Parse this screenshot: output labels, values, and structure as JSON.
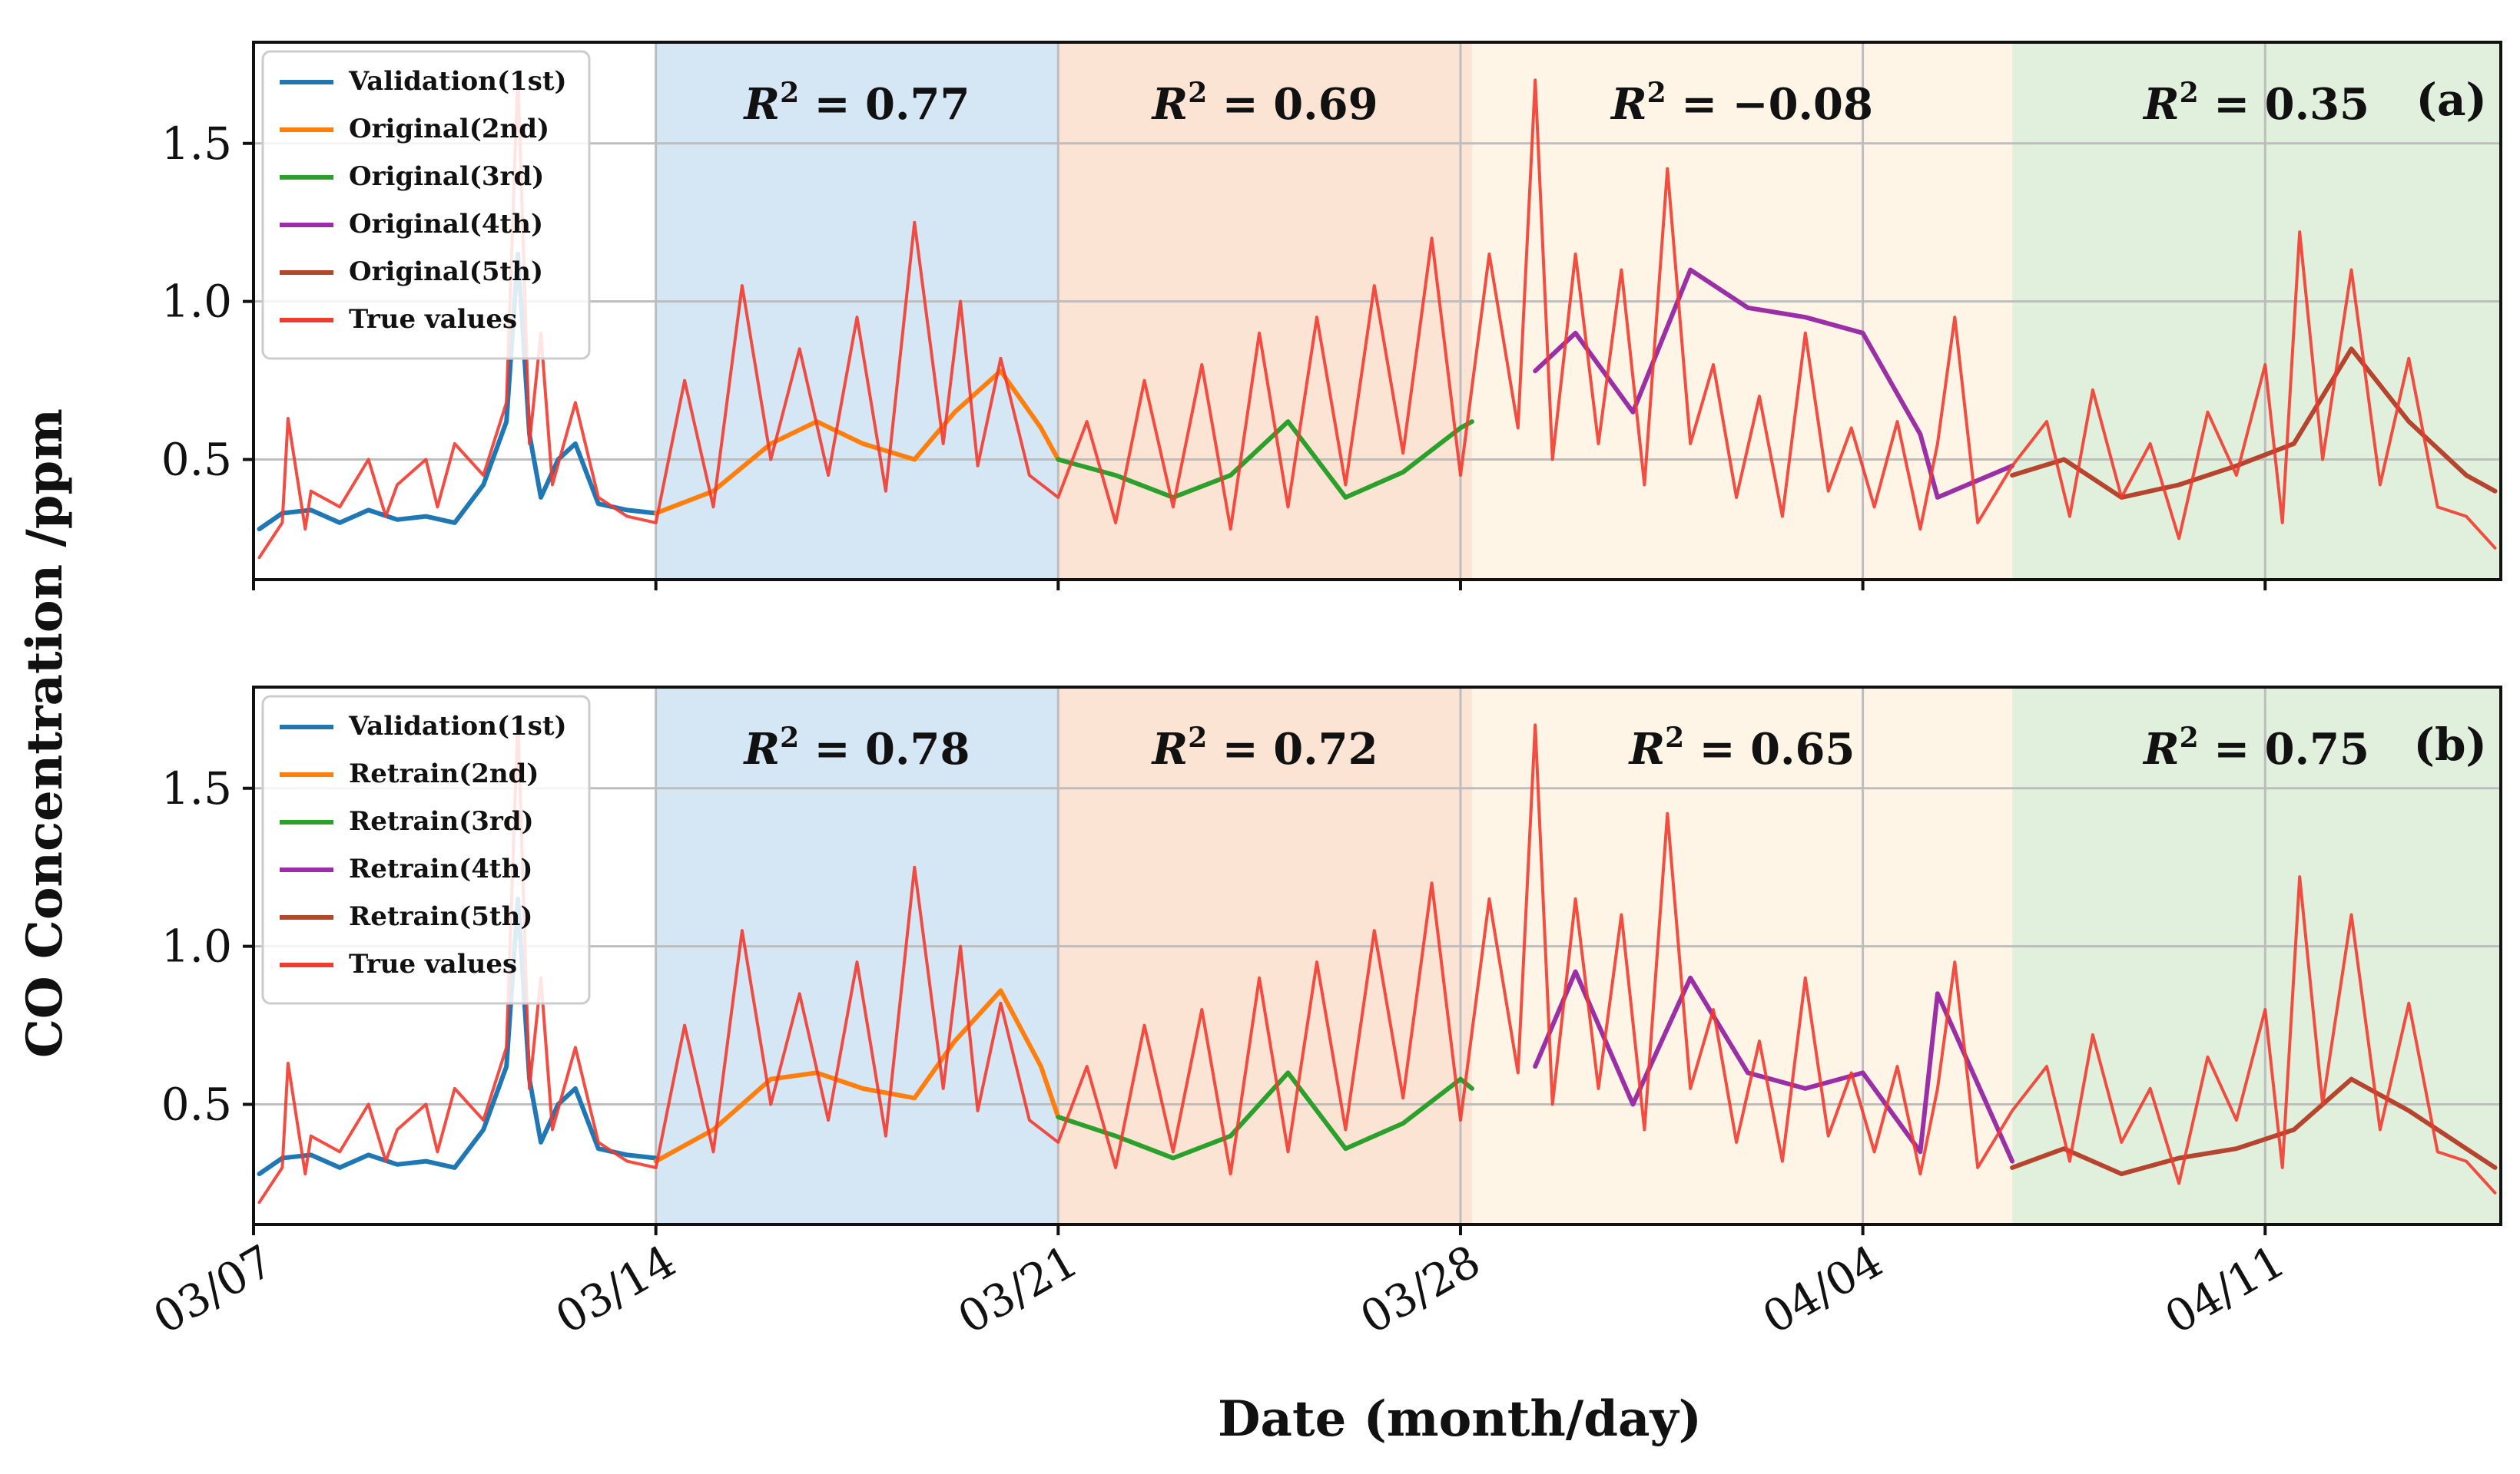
{
  "chart_data": [
    {
      "panel": "(a)",
      "type": "line",
      "ylabel": "CO Concentration /ppm",
      "xlabel": "Date (month/day)",
      "xlim": [
        0,
        39.1
      ],
      "ylim": [
        0.12,
        1.82
      ],
      "yticks": [
        0.5,
        1.0,
        1.5
      ],
      "ytick_labels": [
        "0.5",
        "1.0",
        "1.5"
      ],
      "xticks": [
        0,
        7,
        14,
        21,
        28,
        35
      ],
      "xtick_labels": [
        "03/07",
        "03/14",
        "03/21",
        "03/28",
        "04/04",
        "04/11"
      ],
      "regions": [
        {
          "start": 7,
          "end": 14,
          "color": "#d5e6f4",
          "r2": "0.77"
        },
        {
          "start": 14,
          "end": 21.2,
          "color": "#fce4d4",
          "r2": "0.69"
        },
        {
          "start": 21.2,
          "end": 30.6,
          "color": "#fff5e6",
          "r2": "−0.08"
        },
        {
          "start": 30.6,
          "end": 39.1,
          "color": "#e1f0dc",
          "r2": "0.35"
        }
      ],
      "legend": [
        {
          "label": "Validation(1st)",
          "color": "#1f77b4"
        },
        {
          "label": "Original(2nd)",
          "color": "#ff7f0e"
        },
        {
          "label": "Original(3rd)",
          "color": "#2ca02c"
        },
        {
          "label": "Original(4th)",
          "color": "#9b30a6"
        },
        {
          "label": "Original(5th)",
          "color": "#b5452f"
        },
        {
          "label": "True values",
          "color": "#f23a2f"
        }
      ],
      "series": [
        {
          "name": "Validation(1st)",
          "color": "#1f77b4",
          "x": [
            0.1,
            0.5,
            1.0,
            1.5,
            2.0,
            2.5,
            3.0,
            3.5,
            4.0,
            4.4,
            4.6,
            4.8,
            5.0,
            5.3,
            5.6,
            6.0,
            6.5,
            7.0
          ],
          "y": [
            0.28,
            0.33,
            0.34,
            0.3,
            0.34,
            0.31,
            0.32,
            0.3,
            0.42,
            0.62,
            1.15,
            0.58,
            0.38,
            0.5,
            0.55,
            0.36,
            0.34,
            0.33
          ]
        },
        {
          "name": "Original(2nd)",
          "color": "#ff7f0e",
          "x": [
            7.0,
            8.0,
            9.0,
            9.8,
            10.6,
            11.5,
            12.2,
            13.0,
            13.7,
            14.0
          ],
          "y": [
            0.33,
            0.4,
            0.55,
            0.62,
            0.55,
            0.5,
            0.65,
            0.78,
            0.6,
            0.5
          ]
        },
        {
          "name": "Original(3rd)",
          "color": "#2ca02c",
          "x": [
            14.0,
            15.0,
            16.0,
            17.0,
            18.0,
            19.0,
            20.0,
            21.0,
            21.2
          ],
          "y": [
            0.5,
            0.45,
            0.38,
            0.45,
            0.62,
            0.38,
            0.46,
            0.6,
            0.62
          ]
        },
        {
          "name": "Original(4th)",
          "color": "#9b30a6",
          "x": [
            22.3,
            23.0,
            24.0,
            25.0,
            26.0,
            27.0,
            28.0,
            29.0,
            29.3,
            30.6
          ],
          "y": [
            0.78,
            0.9,
            0.65,
            1.1,
            0.98,
            0.95,
            0.9,
            0.58,
            0.38,
            0.48
          ]
        },
        {
          "name": "Original(5th)",
          "color": "#b5452f",
          "x": [
            30.6,
            31.5,
            32.5,
            33.5,
            34.5,
            35.5,
            36.5,
            37.5,
            38.5,
            39.0
          ],
          "y": [
            0.45,
            0.5,
            0.38,
            0.42,
            0.48,
            0.55,
            0.85,
            0.62,
            0.45,
            0.4
          ]
        },
        {
          "name": "True values",
          "color": "#f23a2f",
          "x": [
            0.1,
            0.5,
            0.6,
            0.9,
            1.0,
            1.5,
            2.0,
            2.3,
            2.5,
            3.0,
            3.2,
            3.5,
            4.0,
            4.4,
            4.6,
            4.8,
            5.0,
            5.2,
            5.6,
            6.0,
            6.5,
            7.0,
            7.5,
            8.0,
            8.5,
            9.0,
            9.5,
            10.0,
            10.5,
            11.0,
            11.5,
            12.0,
            12.3,
            12.6,
            13.0,
            13.5,
            14.0,
            14.5,
            15.0,
            15.5,
            16.0,
            16.5,
            17.0,
            17.5,
            18.0,
            18.5,
            19.0,
            19.5,
            20.0,
            20.5,
            21.0,
            21.5,
            22.0,
            22.3,
            22.6,
            23.0,
            23.4,
            23.8,
            24.2,
            24.6,
            25.0,
            25.4,
            25.8,
            26.2,
            26.6,
            27.0,
            27.4,
            27.8,
            28.2,
            28.6,
            29.0,
            29.3,
            29.6,
            30.0,
            30.6,
            31.2,
            31.6,
            32.0,
            32.5,
            33.0,
            33.5,
            34.0,
            34.5,
            35.0,
            35.3,
            35.6,
            36.0,
            36.5,
            37.0,
            37.5,
            38.0,
            38.5,
            39.0
          ],
          "y": [
            0.19,
            0.3,
            0.63,
            0.28,
            0.4,
            0.35,
            0.5,
            0.32,
            0.42,
            0.5,
            0.35,
            0.55,
            0.45,
            0.68,
            1.72,
            0.55,
            0.9,
            0.42,
            0.68,
            0.38,
            0.32,
            0.3,
            0.75,
            0.35,
            1.05,
            0.5,
            0.85,
            0.45,
            0.95,
            0.4,
            1.25,
            0.55,
            1.0,
            0.48,
            0.82,
            0.45,
            0.38,
            0.62,
            0.3,
            0.75,
            0.35,
            0.8,
            0.28,
            0.9,
            0.35,
            0.95,
            0.42,
            1.05,
            0.52,
            1.2,
            0.45,
            1.15,
            0.6,
            1.7,
            0.5,
            1.15,
            0.55,
            1.1,
            0.42,
            1.42,
            0.55,
            0.8,
            0.38,
            0.7,
            0.32,
            0.9,
            0.4,
            0.6,
            0.35,
            0.62,
            0.28,
            0.55,
            0.95,
            0.3,
            0.48,
            0.62,
            0.32,
            0.72,
            0.38,
            0.55,
            0.25,
            0.65,
            0.45,
            0.8,
            0.3,
            1.22,
            0.5,
            1.1,
            0.42,
            0.82,
            0.35,
            0.32,
            0.22
          ]
        }
      ]
    },
    {
      "panel": "(b)",
      "type": "line",
      "ylabel": "CO Concentration /ppm",
      "xlabel": "Date (month/day)",
      "xlim": [
        0,
        39.1
      ],
      "ylim": [
        0.12,
        1.82
      ],
      "yticks": [
        0.5,
        1.0,
        1.5
      ],
      "ytick_labels": [
        "0.5",
        "1.0",
        "1.5"
      ],
      "xticks": [
        0,
        7,
        14,
        21,
        28,
        35
      ],
      "xtick_labels": [
        "03/07",
        "03/14",
        "03/21",
        "03/28",
        "04/04",
        "04/11"
      ],
      "regions": [
        {
          "start": 7,
          "end": 14,
          "color": "#d5e6f4",
          "r2": "0.78"
        },
        {
          "start": 14,
          "end": 21.2,
          "color": "#fce4d4",
          "r2": "0.72"
        },
        {
          "start": 21.2,
          "end": 30.6,
          "color": "#fff5e6",
          "r2": "0.65"
        },
        {
          "start": 30.6,
          "end": 39.1,
          "color": "#e1f0dc",
          "r2": "0.75"
        }
      ],
      "legend": [
        {
          "label": "Validation(1st)",
          "color": "#1f77b4"
        },
        {
          "label": "Retrain(2nd)",
          "color": "#ff7f0e"
        },
        {
          "label": "Retrain(3rd)",
          "color": "#2ca02c"
        },
        {
          "label": "Retrain(4th)",
          "color": "#9b30a6"
        },
        {
          "label": "Retrain(5th)",
          "color": "#b5452f"
        },
        {
          "label": "True values",
          "color": "#f23a2f"
        }
      ],
      "series": [
        {
          "name": "Validation(1st)",
          "color": "#1f77b4",
          "x": [
            0.1,
            0.5,
            1.0,
            1.5,
            2.0,
            2.5,
            3.0,
            3.5,
            4.0,
            4.4,
            4.6,
            4.8,
            5.0,
            5.3,
            5.6,
            6.0,
            6.5,
            7.0
          ],
          "y": [
            0.28,
            0.33,
            0.34,
            0.3,
            0.34,
            0.31,
            0.32,
            0.3,
            0.42,
            0.62,
            1.15,
            0.58,
            0.38,
            0.5,
            0.55,
            0.36,
            0.34,
            0.33
          ]
        },
        {
          "name": "Retrain(2nd)",
          "color": "#ff7f0e",
          "x": [
            7.0,
            8.0,
            9.0,
            9.8,
            10.6,
            11.5,
            12.2,
            13.0,
            13.7,
            14.0
          ],
          "y": [
            0.32,
            0.42,
            0.58,
            0.6,
            0.55,
            0.52,
            0.7,
            0.86,
            0.62,
            0.46
          ]
        },
        {
          "name": "Retrain(3rd)",
          "color": "#2ca02c",
          "x": [
            14.0,
            15.0,
            16.0,
            17.0,
            18.0,
            19.0,
            20.0,
            21.0,
            21.2
          ],
          "y": [
            0.46,
            0.4,
            0.33,
            0.4,
            0.6,
            0.36,
            0.44,
            0.58,
            0.55
          ]
        },
        {
          "name": "Retrain(4th)",
          "color": "#9b30a6",
          "x": [
            22.3,
            23.0,
            24.0,
            25.0,
            26.0,
            27.0,
            28.0,
            29.0,
            29.3,
            30.6
          ],
          "y": [
            0.62,
            0.92,
            0.5,
            0.9,
            0.6,
            0.55,
            0.6,
            0.35,
            0.85,
            0.32
          ]
        },
        {
          "name": "Retrain(5th)",
          "color": "#b5452f",
          "x": [
            30.6,
            31.5,
            32.5,
            33.5,
            34.5,
            35.5,
            36.5,
            37.5,
            38.5,
            39.0
          ],
          "y": [
            0.3,
            0.36,
            0.28,
            0.33,
            0.36,
            0.42,
            0.58,
            0.48,
            0.36,
            0.3
          ]
        },
        {
          "name": "True values",
          "color": "#f23a2f",
          "x": [
            0.1,
            0.5,
            0.6,
            0.9,
            1.0,
            1.5,
            2.0,
            2.3,
            2.5,
            3.0,
            3.2,
            3.5,
            4.0,
            4.4,
            4.6,
            4.8,
            5.0,
            5.2,
            5.6,
            6.0,
            6.5,
            7.0,
            7.5,
            8.0,
            8.5,
            9.0,
            9.5,
            10.0,
            10.5,
            11.0,
            11.5,
            12.0,
            12.3,
            12.6,
            13.0,
            13.5,
            14.0,
            14.5,
            15.0,
            15.5,
            16.0,
            16.5,
            17.0,
            17.5,
            18.0,
            18.5,
            19.0,
            19.5,
            20.0,
            20.5,
            21.0,
            21.5,
            22.0,
            22.3,
            22.6,
            23.0,
            23.4,
            23.8,
            24.2,
            24.6,
            25.0,
            25.4,
            25.8,
            26.2,
            26.6,
            27.0,
            27.4,
            27.8,
            28.2,
            28.6,
            29.0,
            29.3,
            29.6,
            30.0,
            30.6,
            31.2,
            31.6,
            32.0,
            32.5,
            33.0,
            33.5,
            34.0,
            34.5,
            35.0,
            35.3,
            35.6,
            36.0,
            36.5,
            37.0,
            37.5,
            38.0,
            38.5,
            39.0
          ],
          "y": [
            0.19,
            0.3,
            0.63,
            0.28,
            0.4,
            0.35,
            0.5,
            0.32,
            0.42,
            0.5,
            0.35,
            0.55,
            0.45,
            0.68,
            1.72,
            0.55,
            0.9,
            0.42,
            0.68,
            0.38,
            0.32,
            0.3,
            0.75,
            0.35,
            1.05,
            0.5,
            0.85,
            0.45,
            0.95,
            0.4,
            1.25,
            0.55,
            1.0,
            0.48,
            0.82,
            0.45,
            0.38,
            0.62,
            0.3,
            0.75,
            0.35,
            0.8,
            0.28,
            0.9,
            0.35,
            0.95,
            0.42,
            1.05,
            0.52,
            1.2,
            0.45,
            1.15,
            0.6,
            1.7,
            0.5,
            1.15,
            0.55,
            1.1,
            0.42,
            1.42,
            0.55,
            0.8,
            0.38,
            0.7,
            0.32,
            0.9,
            0.4,
            0.6,
            0.35,
            0.62,
            0.28,
            0.55,
            0.95,
            0.3,
            0.48,
            0.62,
            0.32,
            0.72,
            0.38,
            0.55,
            0.25,
            0.65,
            0.45,
            0.8,
            0.3,
            1.22,
            0.5,
            1.1,
            0.42,
            0.82,
            0.35,
            0.32,
            0.22
          ]
        }
      ]
    }
  ]
}
